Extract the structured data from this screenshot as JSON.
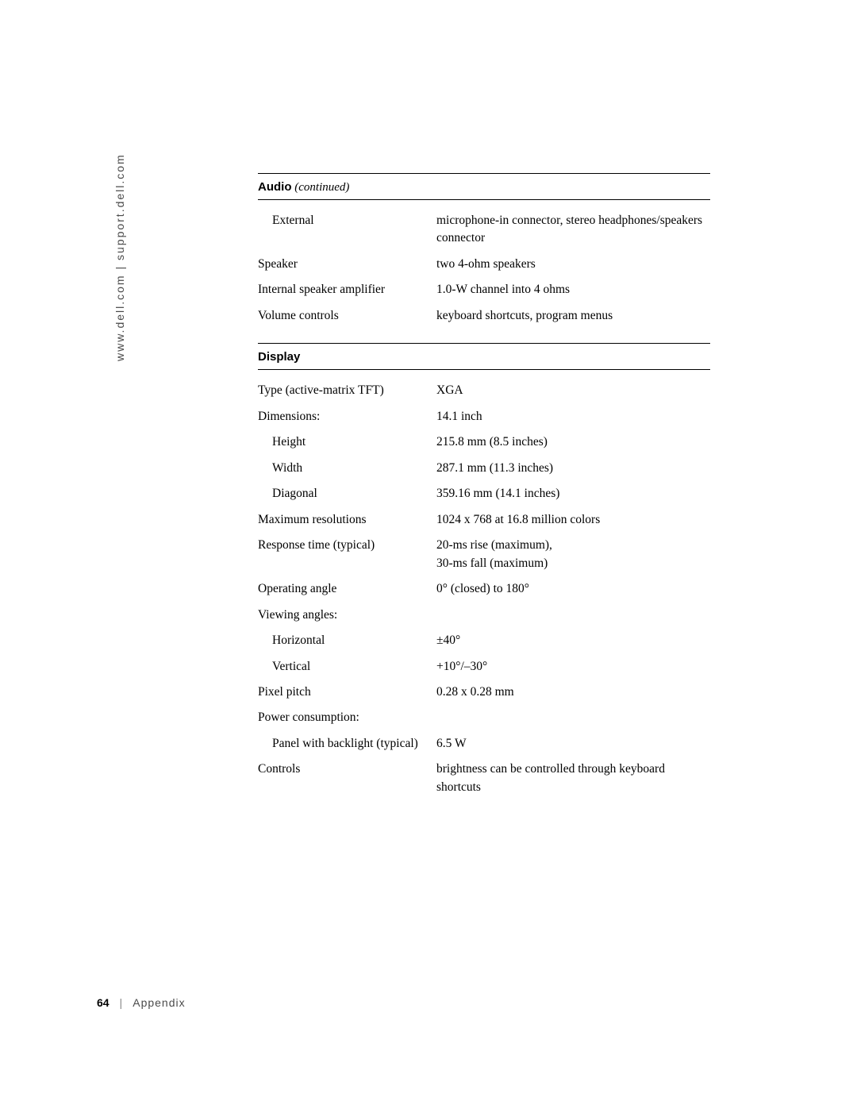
{
  "sidebar": "www.dell.com | support.dell.com",
  "footer": {
    "page": "64",
    "section": "Appendix"
  },
  "sections": [
    {
      "title": "Audio",
      "continued": "(continued)",
      "rows": [
        {
          "label": "External",
          "indent": 1,
          "value": "microphone-in connector, stereo headphones/speakers connector"
        },
        {
          "label": "Speaker",
          "indent": 0,
          "value": "two 4-ohm speakers"
        },
        {
          "label": "Internal speaker amplifier",
          "indent": 0,
          "value": "1.0-W channel into 4 ohms"
        },
        {
          "label": "Volume controls",
          "indent": 0,
          "value": "keyboard shortcuts, program menus"
        }
      ]
    },
    {
      "title": "Display",
      "continued": "",
      "rows": [
        {
          "label": "Type (active-matrix TFT)",
          "indent": 0,
          "value": "XGA"
        },
        {
          "label": "Dimensions:",
          "indent": 0,
          "value": "14.1 inch"
        },
        {
          "label": "Height",
          "indent": 1,
          "value": "215.8 mm (8.5 inches)"
        },
        {
          "label": "Width",
          "indent": 1,
          "value": "287.1 mm (11.3 inches)"
        },
        {
          "label": "Diagonal",
          "indent": 1,
          "value": "359.16 mm (14.1 inches)"
        },
        {
          "label": "Maximum resolutions",
          "indent": 0,
          "value": "1024 x 768 at 16.8 million colors"
        },
        {
          "label": "Response time (typical)",
          "indent": 0,
          "value": "20-ms rise (maximum),\n30-ms fall (maximum)"
        },
        {
          "label": "Operating angle",
          "indent": 0,
          "value": "0° (closed) to 180°"
        },
        {
          "label": "Viewing angles:",
          "indent": 0,
          "value": ""
        },
        {
          "label": "Horizontal",
          "indent": 1,
          "value": "±40°"
        },
        {
          "label": "Vertical",
          "indent": 1,
          "value": "+10°/–30°"
        },
        {
          "label": "Pixel pitch",
          "indent": 0,
          "value": "0.28 x 0.28 mm"
        },
        {
          "label": "Power consumption:",
          "indent": 0,
          "value": ""
        },
        {
          "label": "Panel with backlight (typical)",
          "indent": 1,
          "value": "6.5 W"
        },
        {
          "label": "Controls",
          "indent": 0,
          "value": "brightness can be controlled through keyboard shortcuts"
        }
      ]
    }
  ]
}
